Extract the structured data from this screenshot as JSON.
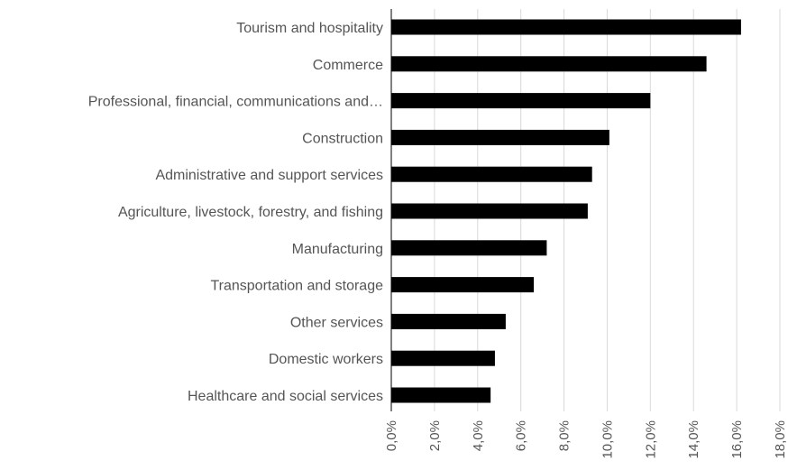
{
  "chart_data": {
    "type": "bar",
    "orientation": "horizontal",
    "title": "",
    "xlabel": "",
    "ylabel": "",
    "categories": [
      "Tourism and hospitality",
      "Commerce",
      "Professional, financial, communications and…",
      "Construction",
      "Administrative and support services",
      "Agriculture, livestock, forestry, and fishing",
      "Manufacturing",
      "Transportation and storage",
      "Other services",
      "Domestic workers",
      "Healthcare and social services"
    ],
    "values": [
      16.2,
      14.6,
      12.0,
      10.1,
      9.3,
      9.1,
      7.2,
      6.6,
      5.3,
      4.8,
      4.6
    ],
    "xlim": [
      0,
      18
    ],
    "ticks": [
      0,
      2,
      4,
      6,
      8,
      10,
      12,
      14,
      16,
      18
    ],
    "tick_labels": [
      "0,0%",
      "2,0%",
      "4,0%",
      "6,0%",
      "8,0%",
      "10,0%",
      "12,0%",
      "14,0%",
      "16,0%",
      "18,0%"
    ],
    "bar_color": "#000000",
    "grid": true,
    "legend": "none"
  }
}
